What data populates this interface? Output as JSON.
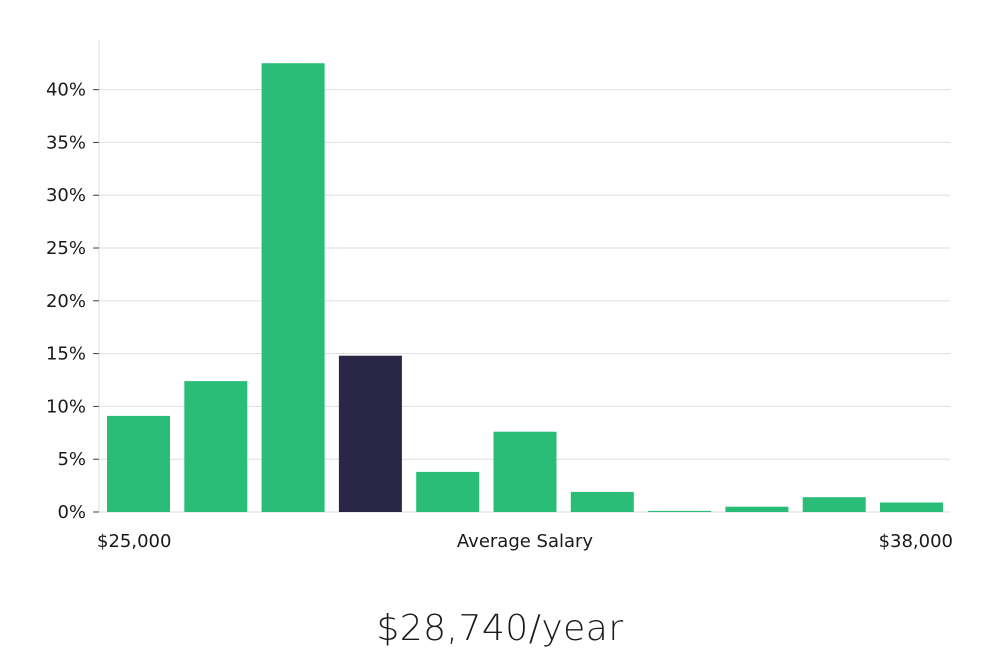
{
  "chart_data": {
    "type": "bar",
    "title": "",
    "xlabel": "Average Salary",
    "x_range_labels": [
      "$25,000",
      "$38,000"
    ],
    "ylabel": "",
    "ylim": [
      0,
      45
    ],
    "y_ticks": [
      0,
      5,
      10,
      15,
      20,
      25,
      30,
      35,
      40
    ],
    "y_tick_labels": [
      "0%",
      "5%",
      "10%",
      "15%",
      "20%",
      "25%",
      "30%",
      "35%",
      "40%"
    ],
    "grid": true,
    "values": [
      9.1,
      12.4,
      42.5,
      14.8,
      3.8,
      7.6,
      1.9,
      0.1,
      0.5,
      1.4,
      0.9
    ],
    "highlight_index": 3,
    "colors": {
      "bar": "#2abd77",
      "highlight": "#2a2646",
      "grid": "#dddddd",
      "axis": "#dddddd"
    }
  },
  "summary": {
    "salary": "$28,740/year"
  }
}
